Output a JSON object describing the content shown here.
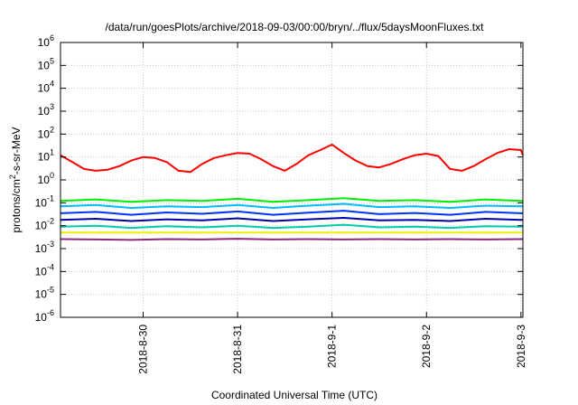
{
  "chart_data": {
    "type": "line",
    "title": "/data/run/goesPlots/archive/2018-09-03/00:00/bryn/../flux/5daysMoonFluxes.txt",
    "xlabel": "Coordinated Universal Time (UTC)",
    "ylabel_main": "protons/cm",
    "ylabel_exp": "2",
    "ylabel_rest": "-s-sr-MeV",
    "y_scale": "log",
    "ylim": [
      1e-06,
      1000000.0
    ],
    "y_ticks": [
      {
        "base": "10",
        "exp": "-6",
        "value": 1e-06
      },
      {
        "base": "10",
        "exp": "-5",
        "value": 1e-05
      },
      {
        "base": "10",
        "exp": "-4",
        "value": 0.0001
      },
      {
        "base": "10",
        "exp": "-3",
        "value": 0.001
      },
      {
        "base": "10",
        "exp": "-2",
        "value": 0.01
      },
      {
        "base": "10",
        "exp": "-1",
        "value": 0.1
      },
      {
        "base": "10",
        "exp": "0",
        "value": 1
      },
      {
        "base": "10",
        "exp": "1",
        "value": 10
      },
      {
        "base": "10",
        "exp": "2",
        "value": 100
      },
      {
        "base": "10",
        "exp": "3",
        "value": 1000
      },
      {
        "base": "10",
        "exp": "4",
        "value": 10000
      },
      {
        "base": "10",
        "exp": "5",
        "value": 100000
      },
      {
        "base": "10",
        "exp": "6",
        "value": 1000000
      }
    ],
    "xlim": [
      "2018-08-29 03:00",
      "2018-09-03 00:30"
    ],
    "x_ticks": [
      {
        "label": "2018-8-30",
        "date": "2018-08-30 00:00"
      },
      {
        "label": "2018-8-31",
        "date": "2018-08-31 00:00"
      },
      {
        "label": "2018-9-1",
        "date": "2018-09-01 00:00"
      },
      {
        "label": "2018-9-2",
        "date": "2018-09-02 00:00"
      },
      {
        "label": "2018-9-3",
        "date": "2018-09-03 00:00"
      }
    ],
    "grid": true,
    "legend": "none",
    "series": [
      {
        "color": "#ff0000",
        "x": [
          "2018-08-29 03:00",
          "2018-08-29 06:00",
          "2018-08-29 09:00",
          "2018-08-29 12:00",
          "2018-08-29 15:00",
          "2018-08-29 18:00",
          "2018-08-29 21:00",
          "2018-08-30 00:00",
          "2018-08-30 03:00",
          "2018-08-30 06:00",
          "2018-08-30 09:00",
          "2018-08-30 12:00",
          "2018-08-30 15:00",
          "2018-08-30 18:00",
          "2018-08-30 21:00",
          "2018-08-31 00:00",
          "2018-08-31 03:00",
          "2018-08-31 06:00",
          "2018-08-31 09:00",
          "2018-08-31 12:00",
          "2018-08-31 15:00",
          "2018-08-31 18:00",
          "2018-08-31 21:00",
          "2018-09-01 00:00",
          "2018-09-01 03:00",
          "2018-09-01 06:00",
          "2018-09-01 09:00",
          "2018-09-01 12:00",
          "2018-09-01 15:00",
          "2018-09-01 18:00",
          "2018-09-01 21:00",
          "2018-09-02 00:00",
          "2018-09-02 03:00",
          "2018-09-02 06:00",
          "2018-09-02 09:00",
          "2018-09-02 12:00",
          "2018-09-02 15:00",
          "2018-09-02 18:00",
          "2018-09-02 21:00",
          "2018-09-03 00:00",
          "2018-09-03 00:30"
        ],
        "y": [
          12,
          6,
          3,
          2.5,
          2.8,
          4,
          7,
          10,
          9,
          6,
          2.5,
          2.2,
          5,
          9,
          12,
          15,
          14,
          8,
          4,
          2.5,
          5,
          12,
          20,
          35,
          15,
          7,
          4,
          3.5,
          5,
          8,
          12,
          14,
          11,
          3,
          2.5,
          4,
          8,
          15,
          22,
          20,
          12
        ]
      },
      {
        "color": "#00ee00",
        "x": [
          "2018-08-29 03:00",
          "2018-08-29 12:00",
          "2018-08-29 21:00",
          "2018-08-30 06:00",
          "2018-08-30 15:00",
          "2018-08-31 00:00",
          "2018-08-31 09:00",
          "2018-08-31 18:00",
          "2018-09-01 03:00",
          "2018-09-01 12:00",
          "2018-09-01 21:00",
          "2018-09-02 06:00",
          "2018-09-02 15:00",
          "2018-09-03 00:00",
          "2018-09-03 00:30"
        ],
        "y": [
          0.12,
          0.14,
          0.11,
          0.13,
          0.12,
          0.15,
          0.11,
          0.13,
          0.16,
          0.12,
          0.13,
          0.11,
          0.14,
          0.12,
          0.12
        ]
      },
      {
        "color": "#00bbff",
        "x": [
          "2018-08-29 03:00",
          "2018-08-29 12:00",
          "2018-08-29 21:00",
          "2018-08-30 06:00",
          "2018-08-30 15:00",
          "2018-08-31 00:00",
          "2018-08-31 09:00",
          "2018-08-31 18:00",
          "2018-09-01 03:00",
          "2018-09-01 12:00",
          "2018-09-01 21:00",
          "2018-09-02 06:00",
          "2018-09-02 15:00",
          "2018-09-03 00:00",
          "2018-09-03 00:30"
        ],
        "y": [
          0.07,
          0.08,
          0.06,
          0.07,
          0.065,
          0.08,
          0.06,
          0.075,
          0.09,
          0.065,
          0.07,
          0.06,
          0.075,
          0.07,
          0.07
        ]
      },
      {
        "color": "#0033ff",
        "x": [
          "2018-08-29 03:00",
          "2018-08-29 12:00",
          "2018-08-29 21:00",
          "2018-08-30 06:00",
          "2018-08-30 15:00",
          "2018-08-31 00:00",
          "2018-08-31 09:00",
          "2018-08-31 18:00",
          "2018-09-01 03:00",
          "2018-09-01 12:00",
          "2018-09-01 21:00",
          "2018-09-02 06:00",
          "2018-09-02 15:00",
          "2018-09-03 00:00",
          "2018-09-03 00:30"
        ],
        "y": [
          0.035,
          0.04,
          0.03,
          0.038,
          0.033,
          0.042,
          0.03,
          0.037,
          0.045,
          0.032,
          0.036,
          0.03,
          0.04,
          0.035,
          0.035
        ]
      },
      {
        "color": "#0000aa",
        "x": [
          "2018-08-29 03:00",
          "2018-08-29 12:00",
          "2018-08-29 21:00",
          "2018-08-30 06:00",
          "2018-08-30 15:00",
          "2018-08-31 00:00",
          "2018-08-31 09:00",
          "2018-08-31 18:00",
          "2018-09-01 03:00",
          "2018-09-01 12:00",
          "2018-09-01 21:00",
          "2018-09-02 06:00",
          "2018-09-02 15:00",
          "2018-09-03 00:00",
          "2018-09-03 00:30"
        ],
        "y": [
          0.018,
          0.02,
          0.016,
          0.019,
          0.017,
          0.021,
          0.016,
          0.019,
          0.022,
          0.017,
          0.018,
          0.016,
          0.02,
          0.018,
          0.018
        ]
      },
      {
        "color": "#00ccaa",
        "x": [
          "2018-08-29 03:00",
          "2018-08-29 12:00",
          "2018-08-29 21:00",
          "2018-08-30 06:00",
          "2018-08-30 15:00",
          "2018-08-31 00:00",
          "2018-08-31 09:00",
          "2018-08-31 18:00",
          "2018-09-01 03:00",
          "2018-09-01 12:00",
          "2018-09-01 21:00",
          "2018-09-02 06:00",
          "2018-09-02 15:00",
          "2018-09-03 00:00",
          "2018-09-03 00:30"
        ],
        "y": [
          0.009,
          0.01,
          0.008,
          0.0095,
          0.0085,
          0.01,
          0.008,
          0.009,
          0.011,
          0.0085,
          0.009,
          0.008,
          0.0095,
          0.009,
          0.009
        ]
      },
      {
        "color": "#eeee00",
        "x": [
          "2018-08-29 03:00",
          "2018-08-29 12:00",
          "2018-08-29 21:00",
          "2018-08-30 06:00",
          "2018-08-30 15:00",
          "2018-08-31 00:00",
          "2018-08-31 09:00",
          "2018-08-31 18:00",
          "2018-09-01 03:00",
          "2018-09-01 12:00",
          "2018-09-01 21:00",
          "2018-09-02 06:00",
          "2018-09-02 15:00",
          "2018-09-03 00:00",
          "2018-09-03 00:30"
        ],
        "y": [
          0.005,
          0.005,
          0.005,
          0.005,
          0.005,
          0.005,
          0.005,
          0.005,
          0.005,
          0.005,
          0.005,
          0.005,
          0.005,
          0.005,
          0.005
        ]
      },
      {
        "color": "#8b2a7a",
        "x": [
          "2018-08-29 03:00",
          "2018-08-29 12:00",
          "2018-08-29 21:00",
          "2018-08-30 06:00",
          "2018-08-30 15:00",
          "2018-08-31 00:00",
          "2018-08-31 09:00",
          "2018-08-31 18:00",
          "2018-09-01 03:00",
          "2018-09-01 12:00",
          "2018-09-01 21:00",
          "2018-09-02 06:00",
          "2018-09-02 15:00",
          "2018-09-03 00:00",
          "2018-09-03 00:30"
        ],
        "y": [
          0.0026,
          0.0025,
          0.0024,
          0.0026,
          0.0025,
          0.0027,
          0.0025,
          0.0026,
          0.0025,
          0.0026,
          0.0025,
          0.0026,
          0.0025,
          0.0026,
          0.0026
        ]
      }
    ]
  }
}
